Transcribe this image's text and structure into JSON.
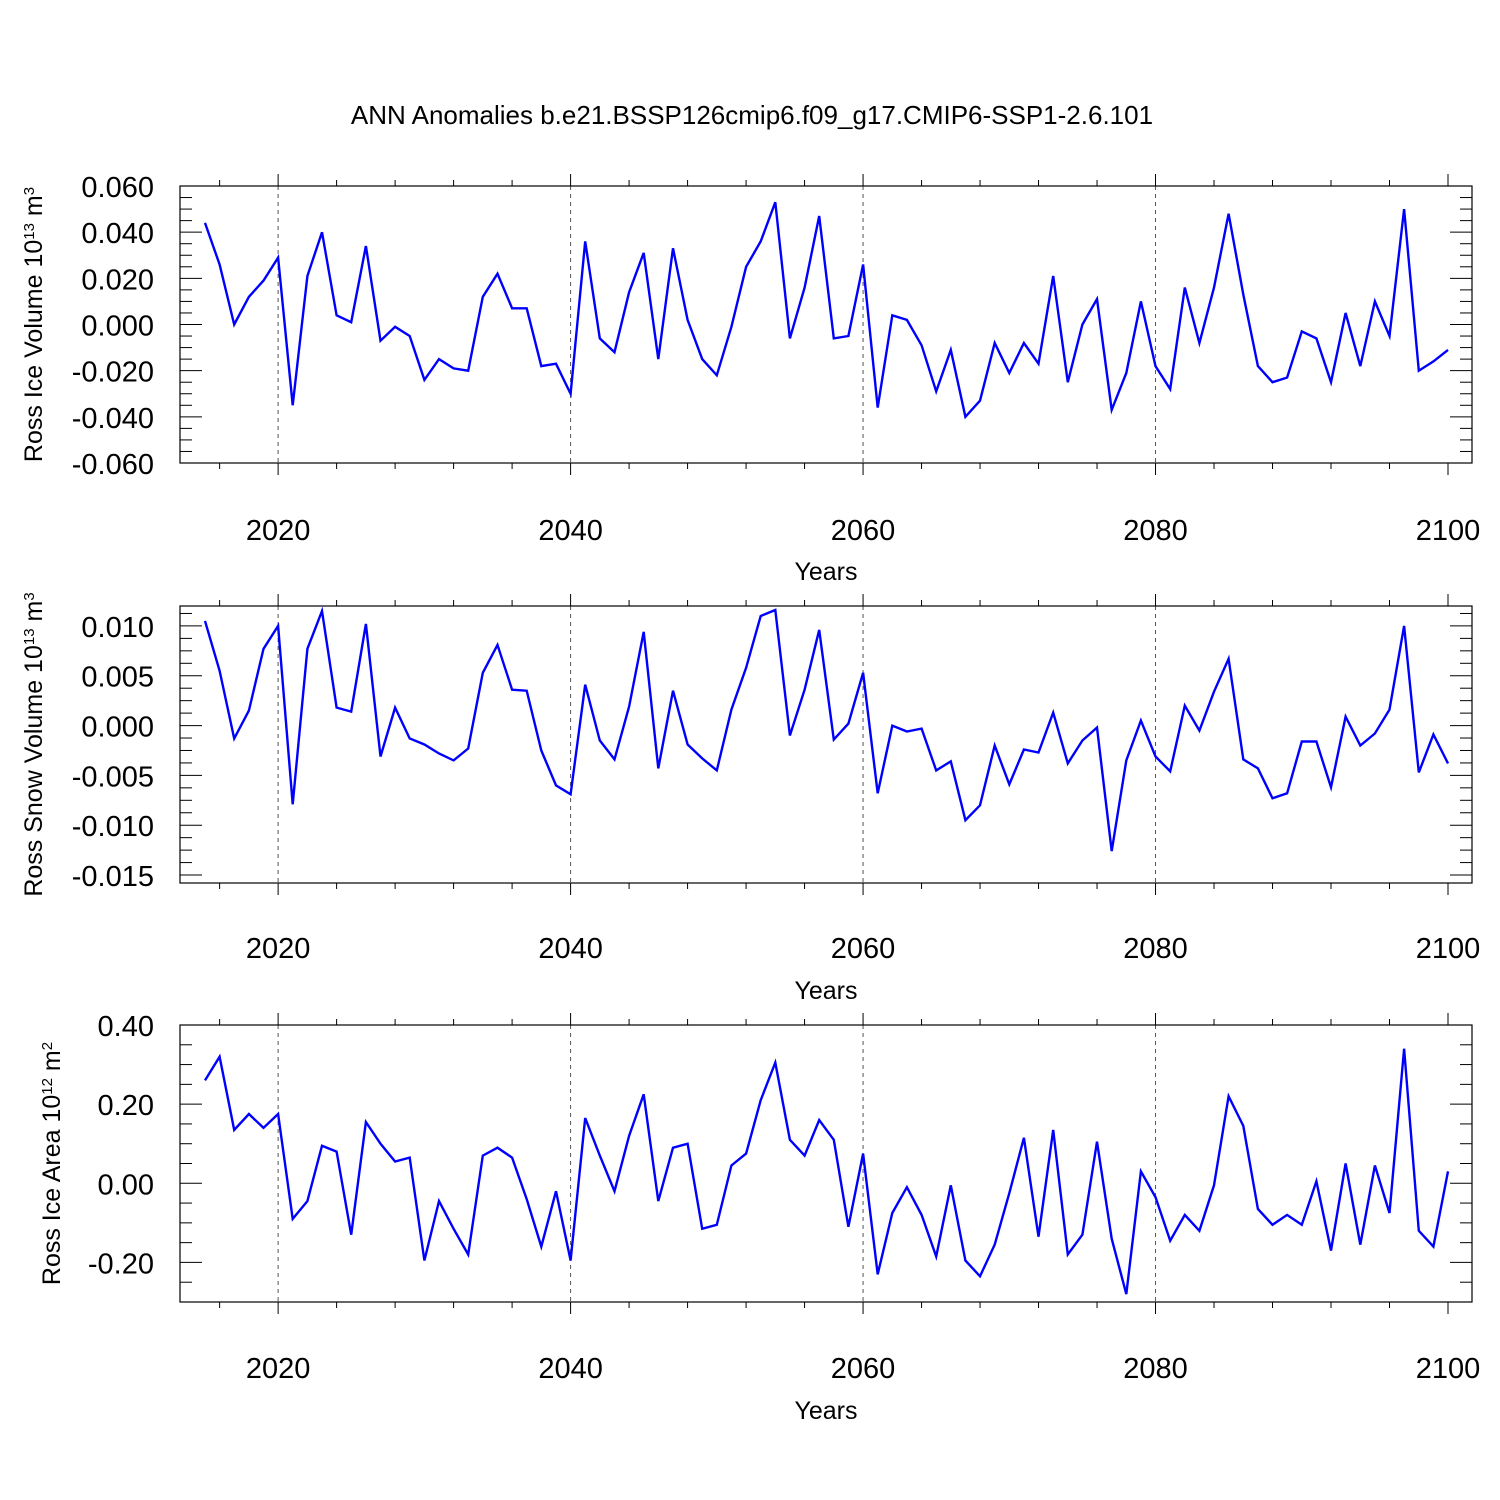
{
  "title": "ANN Anomalies b.e21.BSSP126cmip6.f09_g17.CMIP6-SSP1-2.6.101",
  "colors": {
    "series": "#0000ff",
    "frame": "#000000",
    "grid": "#555555"
  },
  "chart_data": [
    {
      "type": "line",
      "ylabel": {
        "prefix": "Ross Ice Volume 10",
        "sup1": "13",
        "mid": " m",
        "sup2": "3"
      },
      "xlabel": "Years",
      "xlim": [
        2015,
        2100
      ],
      "ylim": [
        -0.06,
        0.06
      ],
      "x_ticks": [
        2020,
        2040,
        2060,
        2080,
        2100
      ],
      "x_tick_labels": [
        "2020",
        "2040",
        "2060",
        "2080",
        "2100"
      ],
      "y_ticks": [
        0.06,
        0.04,
        0.02,
        0.0,
        -0.02,
        -0.04,
        -0.06
      ],
      "y_tick_labels": [
        "0.060",
        "0.040",
        "0.020",
        "0.000",
        "-0.020",
        "-0.040",
        "-0.060"
      ],
      "grid": "vertical dashed at major x ticks",
      "series": [
        {
          "x_start": 2015,
          "values": [
            0.044,
            0.026,
            0.0,
            0.012,
            0.019,
            0.029,
            -0.035,
            0.021,
            0.04,
            0.004,
            0.001,
            0.034,
            -0.007,
            -0.001,
            -0.005,
            -0.024,
            -0.015,
            -0.019,
            -0.02,
            0.012,
            0.022,
            0.007,
            0.007,
            -0.018,
            -0.017,
            -0.03,
            0.036,
            -0.006,
            -0.012,
            0.014,
            0.031,
            -0.015,
            0.033,
            0.002,
            -0.015,
            -0.022,
            -0.001,
            0.025,
            0.036,
            0.053,
            -0.006,
            0.016,
            0.047,
            -0.006,
            -0.005,
            0.026,
            -0.036,
            0.004,
            0.002,
            -0.009,
            -0.029,
            -0.011,
            -0.04,
            -0.033,
            -0.008,
            -0.021,
            -0.008,
            -0.017,
            0.021,
            -0.025,
            0.0,
            0.011,
            -0.037,
            -0.021,
            0.01,
            -0.018,
            -0.028,
            0.016,
            -0.008,
            0.016,
            0.048,
            0.013,
            -0.018,
            -0.025,
            -0.023,
            -0.003,
            -0.006,
            -0.025,
            0.005,
            -0.018,
            0.01,
            -0.005,
            0.05,
            -0.02,
            -0.016,
            -0.011
          ]
        }
      ]
    },
    {
      "type": "line",
      "ylabel": {
        "prefix": "Ross Snow Volume 10",
        "sup1": "13",
        "mid": " m",
        "sup2": "3"
      },
      "xlabel": "Years",
      "xlim": [
        2015,
        2100
      ],
      "ylim": [
        -0.016,
        0.012
      ],
      "x_ticks": [
        2020,
        2040,
        2060,
        2080,
        2100
      ],
      "x_tick_labels": [
        "2020",
        "2040",
        "2060",
        "2080",
        "2100"
      ],
      "y_ticks": [
        0.01,
        0.005,
        0.0,
        -0.005,
        -0.01,
        -0.015
      ],
      "y_tick_labels": [
        "0.010",
        "0.005",
        "0.000",
        "-0.005",
        "-0.010",
        "-0.015"
      ],
      "grid": "vertical dashed at major x ticks",
      "series": [
        {
          "x_start": 2015,
          "values": [
            0.0105,
            0.0055,
            -0.0013,
            0.0015,
            0.0077,
            0.01,
            -0.0079,
            0.0077,
            0.0115,
            0.0018,
            0.0014,
            0.0102,
            -0.0031,
            0.0018,
            -0.0013,
            -0.0019,
            -0.0028,
            -0.0035,
            -0.0023,
            0.0053,
            0.0081,
            0.0036,
            0.0035,
            -0.0025,
            -0.006,
            -0.0069,
            0.0041,
            -0.0015,
            -0.0034,
            0.0019,
            0.0094,
            -0.0043,
            0.0035,
            -0.0019,
            -0.0033,
            -0.0045,
            0.0016,
            0.0058,
            0.011,
            0.0116,
            -0.001,
            0.0036,
            0.0096,
            -0.0014,
            0.0002,
            0.0053,
            -0.0068,
            0.0,
            -0.0006,
            -0.0003,
            -0.0045,
            -0.0036,
            -0.0095,
            -0.008,
            -0.002,
            -0.0059,
            -0.0024,
            -0.0027,
            0.0013,
            -0.0038,
            -0.0015,
            -0.0002,
            -0.0126,
            -0.0035,
            0.0005,
            -0.0031,
            -0.0046,
            0.002,
            -0.0005,
            0.0034,
            0.0067,
            -0.0034,
            -0.0043,
            -0.0073,
            -0.0068,
            -0.0016,
            -0.0016,
            -0.0062,
            0.0009,
            -0.002,
            -0.0008,
            0.0016,
            0.01,
            -0.0047,
            -0.0009,
            -0.0038
          ]
        }
      ]
    },
    {
      "type": "line",
      "ylabel": {
        "prefix": "Ross Ice Area 10",
        "sup1": "12",
        "mid": " m",
        "sup2": "2"
      },
      "xlabel": "Years",
      "xlim": [
        2015,
        2100
      ],
      "ylim": [
        -0.3,
        0.4
      ],
      "x_ticks": [
        2020,
        2040,
        2060,
        2080,
        2100
      ],
      "x_tick_labels": [
        "2020",
        "2040",
        "2060",
        "2080",
        "2100"
      ],
      "y_ticks": [
        0.4,
        0.2,
        0.0,
        -0.2
      ],
      "y_tick_labels": [
        "0.40",
        "0.20",
        "0.00",
        "-0.20"
      ],
      "grid": "vertical dashed at major x ticks",
      "series": [
        {
          "x_start": 2015,
          "values": [
            0.26,
            0.32,
            0.135,
            0.175,
            0.14,
            0.175,
            -0.09,
            -0.045,
            0.095,
            0.08,
            -0.13,
            0.155,
            0.1,
            0.055,
            0.065,
            -0.195,
            -0.045,
            -0.115,
            -0.18,
            0.07,
            0.09,
            0.065,
            -0.04,
            -0.16,
            -0.02,
            -0.195,
            0.165,
            0.07,
            -0.02,
            0.12,
            0.225,
            -0.045,
            0.09,
            0.1,
            -0.115,
            -0.105,
            0.045,
            0.075,
            0.21,
            0.305,
            0.11,
            0.07,
            0.16,
            0.11,
            -0.11,
            0.075,
            -0.23,
            -0.075,
            -0.01,
            -0.08,
            -0.185,
            -0.005,
            -0.195,
            -0.235,
            -0.155,
            -0.025,
            0.115,
            -0.135,
            0.135,
            -0.18,
            -0.13,
            0.105,
            -0.14,
            -0.28,
            0.03,
            -0.035,
            -0.145,
            -0.08,
            -0.12,
            -0.005,
            0.22,
            0.145,
            -0.065,
            -0.105,
            -0.08,
            -0.105,
            0.005,
            -0.17,
            0.05,
            -0.155,
            0.045,
            -0.075,
            0.34,
            -0.12,
            -0.16,
            0.03
          ]
        }
      ]
    }
  ]
}
